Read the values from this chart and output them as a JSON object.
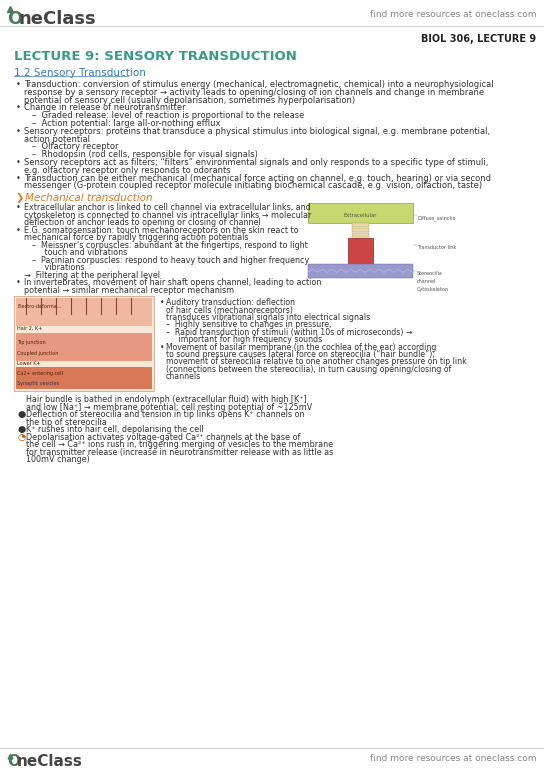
{
  "bg_color": "#ffffff",
  "top_logo_color": "#4a7c59",
  "top_right_text": "find more resources at oneclass.com",
  "top_right_color": "#888888",
  "course_label": "BIOL 306, LECTURE 9",
  "course_label_color": "#222222",
  "lecture_title": "LECTURE 9: SENSORY TRANSDUCTION",
  "lecture_title_color": "#3a9a8a",
  "section_header": "1.2 Sensory Transduction",
  "section_header_color": "#3a7abf",
  "body_color": "#333333",
  "bullet_color": "#333333",
  "mechanical_header": "Mechanical transduction",
  "mechanical_header_color": "#e07820",
  "bottom_logo_color": "#4a7c59",
  "bottom_right_text": "find more resources at oneclass.com",
  "bottom_right_color": "#888888",
  "divider_color": "#cccccc"
}
